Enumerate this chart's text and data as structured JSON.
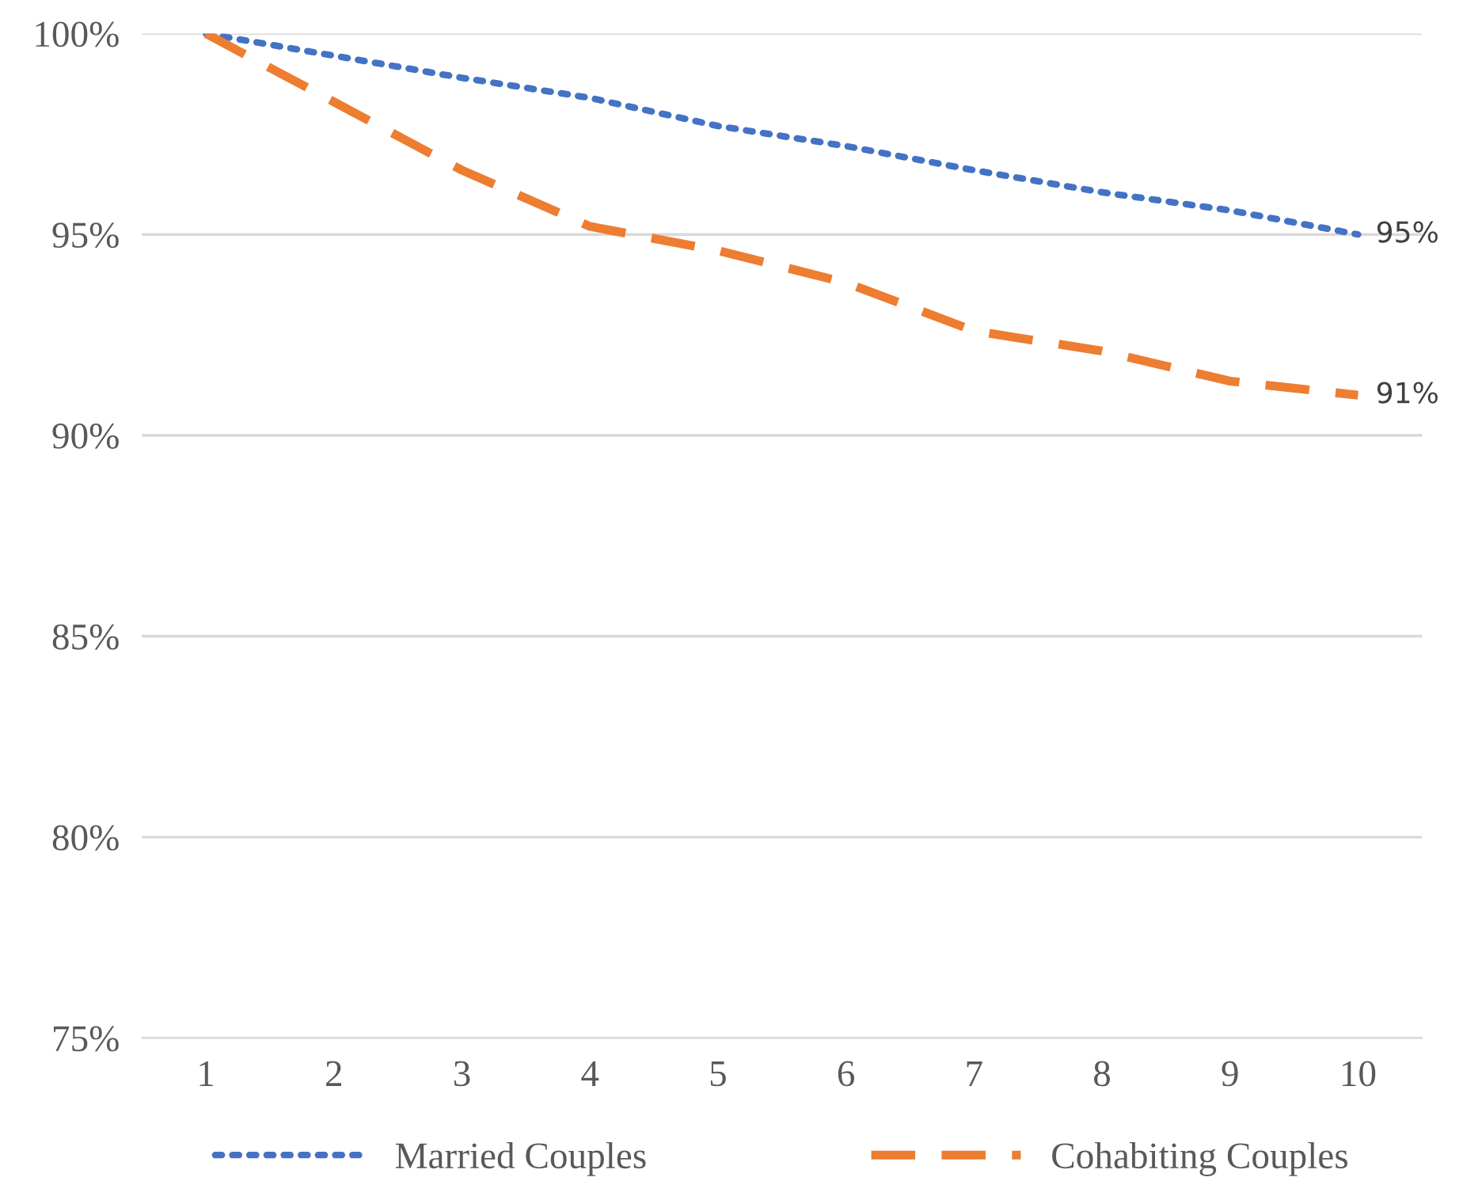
{
  "chart_data": {
    "type": "line",
    "categories": [
      "1",
      "2",
      "3",
      "4",
      "5",
      "6",
      "7",
      "8",
      "9",
      "10"
    ],
    "series": [
      {
        "name": "Married Couples",
        "color": "#4472c4",
        "line_style": "dotted",
        "values": [
          100,
          99.45,
          98.9,
          98.4,
          97.7,
          97.2,
          96.6,
          96.05,
          95.6,
          95
        ],
        "value_labels": [
          null,
          null,
          null,
          null,
          null,
          null,
          null,
          null,
          null,
          "95%"
        ]
      },
      {
        "name": "Cohabiting Couples",
        "color": "#ed7d31",
        "line_style": "dashed",
        "values": [
          100,
          98.3,
          96.6,
          95.2,
          94.6,
          93.8,
          92.6,
          92.1,
          91.35,
          91
        ],
        "value_labels": [
          null,
          null,
          null,
          null,
          null,
          null,
          null,
          null,
          null,
          "91%"
        ]
      }
    ],
    "ylim": [
      75,
      100
    ],
    "yticks": [
      {
        "value": 75,
        "label": "75%"
      },
      {
        "value": 80,
        "label": "80%"
      },
      {
        "value": 85,
        "label": "85%"
      },
      {
        "value": 90,
        "label": "90%"
      },
      {
        "value": 95,
        "label": "95%"
      },
      {
        "value": 100,
        "label": "100%"
      }
    ],
    "grid": "y",
    "legend": "bottom",
    "marker": "none"
  }
}
